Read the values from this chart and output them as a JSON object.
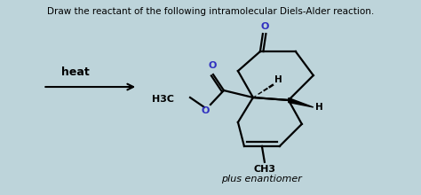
{
  "title": "Draw the reactant of the following intramolecular Diels-Alder reaction.",
  "title_fontsize": 7.5,
  "title_color": "#000000",
  "background_color": "#bdd4da",
  "heat_label": "heat",
  "heat_fontsize": 9,
  "plus_enantiomer": "plus enantiomer",
  "ch3_label": "CH3",
  "h3c_label": "H3C",
  "figsize": [
    4.74,
    2.2
  ],
  "dpi": 100,
  "lw": 1.6
}
